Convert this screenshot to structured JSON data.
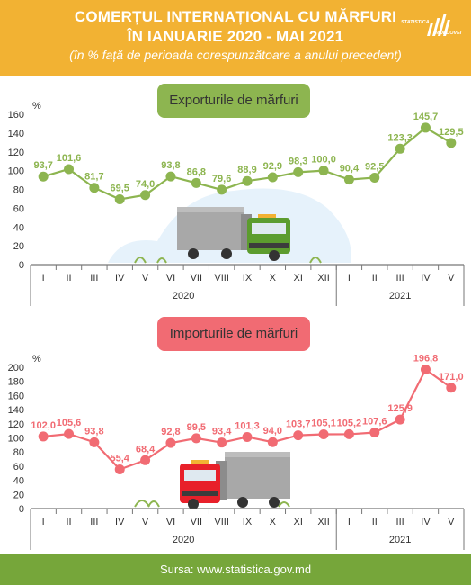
{
  "header": {
    "title_line1": "COMERȚUL INTERNAȚIONAL CU MĂRFURI",
    "title_line2": "ÎN IANUARIE 2020 - MAI 2021",
    "subtitle": "(în % față de perioada corespunzătoare a anului precedent)",
    "logo_line1": "STATISTICA",
    "logo_line2": "MOLDOVEI"
  },
  "colors": {
    "header_bg": "#f2b233",
    "export_line": "#8db550",
    "import_line": "#f16b73",
    "footer_bg": "#76a63a"
  },
  "chart_data": [
    {
      "type": "line",
      "title": "Exporturile de mărfuri",
      "ylabel": "%",
      "ylim": [
        0,
        160
      ],
      "yticks": [
        0,
        20,
        40,
        60,
        80,
        100,
        120,
        140,
        160
      ],
      "categories": [
        "I",
        "II",
        "III",
        "IV",
        "V",
        "VI",
        "VII",
        "VIII",
        "IX",
        "X",
        "XI",
        "XII",
        "I",
        "II",
        "III",
        "IV",
        "V"
      ],
      "groups": [
        {
          "label": "2020",
          "count": 12
        },
        {
          "label": "2021",
          "count": 5
        }
      ],
      "values": [
        93.7,
        101.6,
        81.7,
        69.5,
        74.0,
        93.8,
        86.8,
        79.6,
        88.9,
        92.9,
        98.3,
        100.0,
        90.4,
        92.5,
        123.3,
        145.7,
        129.5
      ],
      "value_labels": [
        "93,7",
        "101,6",
        "81,7",
        "69,5",
        "74,0",
        "93,8",
        "86,8",
        "79,6",
        "88,9",
        "92,9",
        "98,3",
        "100,0",
        "90,4",
        "92,5",
        "123,3",
        "145,7",
        "129,5"
      ],
      "grid": false
    },
    {
      "type": "line",
      "title": "Importurile de mărfuri",
      "ylabel": "%",
      "ylim": [
        0,
        200
      ],
      "yticks": [
        0,
        20,
        40,
        60,
        80,
        100,
        120,
        140,
        160,
        180,
        200
      ],
      "categories": [
        "I",
        "II",
        "III",
        "IV",
        "V",
        "VI",
        "VII",
        "VIII",
        "IX",
        "X",
        "XI",
        "XII",
        "I",
        "II",
        "III",
        "IV",
        "V"
      ],
      "groups": [
        {
          "label": "2020",
          "count": 12
        },
        {
          "label": "2021",
          "count": 5
        }
      ],
      "values": [
        102.0,
        105.6,
        93.8,
        55.4,
        68.4,
        92.8,
        99.5,
        93.4,
        101.3,
        94.0,
        103.7,
        105.1,
        105.2,
        107.6,
        125.9,
        196.8,
        171.0
      ],
      "value_labels": [
        "102,0",
        "105,6",
        "93,8",
        "55,4",
        "68,4",
        "92,8",
        "99,5",
        "93,4",
        "101,3",
        "94,0",
        "103,7",
        "105,1",
        "105,2",
        "107,6",
        "125,9",
        "196,8",
        "171,0"
      ],
      "grid": false
    }
  ],
  "footer": {
    "source": "Sursa: www.statistica.gov.md"
  }
}
